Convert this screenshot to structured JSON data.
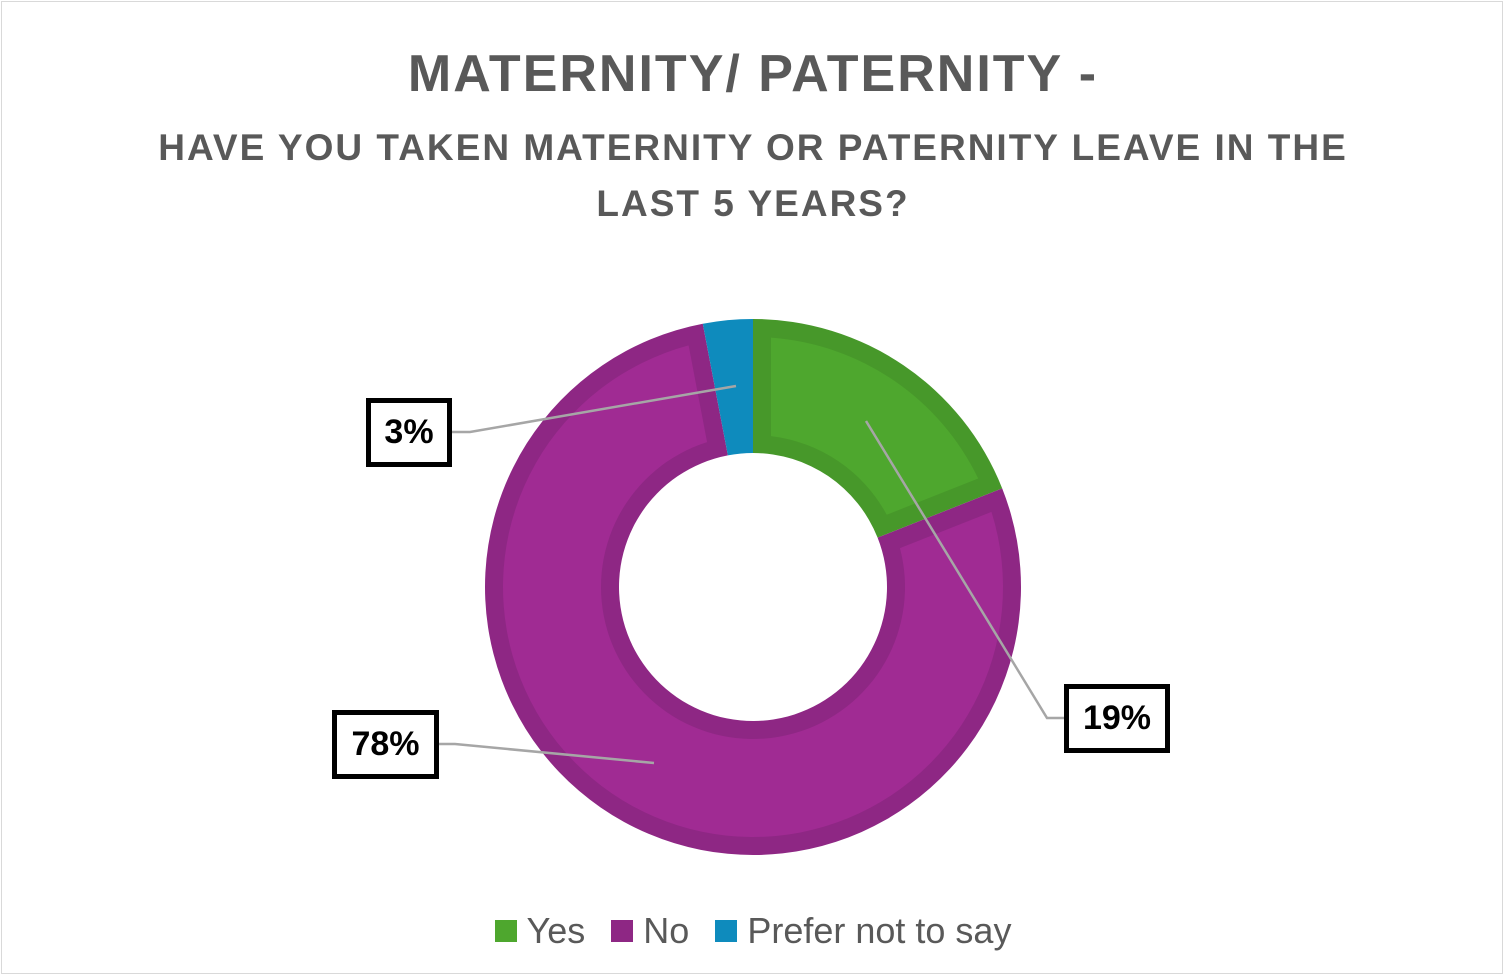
{
  "chart_data": {
    "type": "pie",
    "variant": "donut",
    "title": "MATERNITY/ PATERNITY -",
    "subtitle": "HAVE YOU TAKEN MATERNITY OR PATERNITY LEAVE IN THE LAST 5 YEARS?",
    "categories": [
      "Yes",
      "No",
      "Prefer not to say"
    ],
    "values": [
      19,
      78,
      3
    ],
    "data_labels": [
      "19%",
      "78%",
      "3%"
    ],
    "colors": [
      "#4ea72e",
      "#a02b93",
      "#0f9ed5"
    ],
    "border_colors": [
      "#47982a",
      "#8e2784",
      "#0e8bbd"
    ],
    "legend_position": "bottom"
  }
}
